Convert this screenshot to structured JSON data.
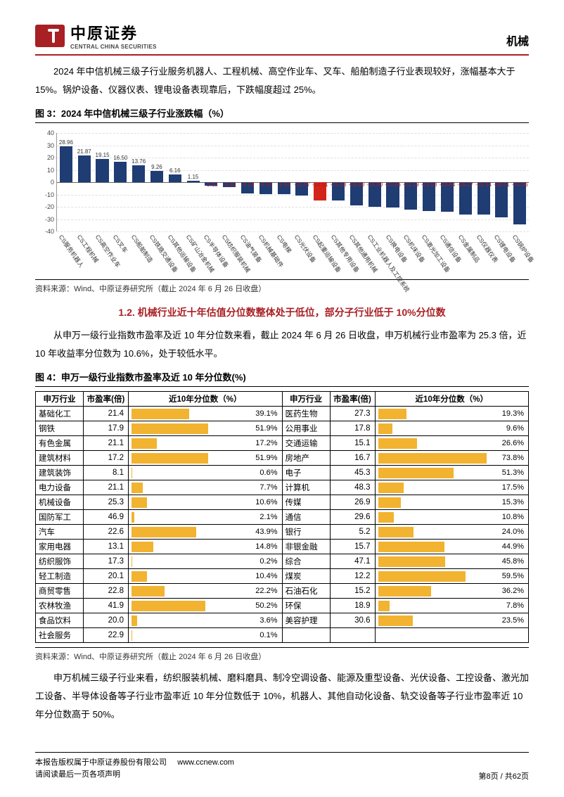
{
  "header": {
    "logo_cn": "中原证券",
    "logo_en": "CENTRAL CHINA SECURITIES",
    "category": "机械"
  },
  "para1": "2024 年中信机械三级子行业服务机器人、工程机械、高空作业车、叉车、船舶制造子行业表现较好，涨幅基本大于 15%。锅炉设备、仪器仪表、锂电设备表现靠后，下跌幅度超过 25%。",
  "fig3": {
    "title": "图 3：2024 年中信机械三级子行业涨跌幅（%）",
    "source": "资料来源：Wind、中原证券研究所（截止 2024 年 6 月 26 日收盘）",
    "ylim": [
      -40,
      40
    ],
    "yticks": [
      -40,
      -30,
      -20,
      -10,
      0,
      10,
      20,
      30,
      40
    ],
    "bar_color": "#1f3c73",
    "highlight_color": "#d32419",
    "highlight_index": 14,
    "grid_color": "#e0e0e0",
    "categories": [
      "CS服务机器人",
      "CS工程机械",
      "CS高空作业车",
      "CS叉车",
      "CS船舶制造",
      "CS铁路交通设备",
      "CS其他运输设备",
      "CS矿山冶金机械",
      "CS半导体设备",
      "CS纺织服装机械",
      "CS油气装备",
      "CS机械基础件",
      "CS电梯",
      "CS光伏设备",
      "CS起重运输设备",
      "CS其他专用设备",
      "CS其他通用机械",
      "CS工业机器人及工控系统",
      "CS换电设备",
      "CS机床设备",
      "CS激光加工设备",
      "CS通信设备",
      "CS金属制品",
      "CS仪器仪表",
      "CS锂电设备",
      "CS锅炉设备"
    ],
    "values": [
      28.96,
      21.87,
      19.15,
      16.5,
      13.76,
      9.26,
      6.16,
      1.15,
      -3.12,
      -3.92,
      -9.24,
      -9.53,
      -9.94,
      -10.87,
      -14.61,
      -15.03,
      -18.6,
      -19.8,
      -20.66,
      -22.19,
      -23.53,
      -23.84,
      -26.27,
      -26.34,
      -28.51,
      -34.06
    ]
  },
  "sectionHeading": "1.2. 机械行业近十年估值分位数整体处于低位，部分子行业低于 10%分位数",
  "para2": "从申万一级行业指数市盈率及近 10 年分位数来看，截止 2024 年 6 月 26 日收盘，申万机械行业市盈率为 25.3 倍，近 10 年收益率分位数为 10.6%，处于较低水平。",
  "fig4": {
    "title": "图 4：申万一级行业指数市盈率及近 10 年分位数(%)",
    "source": "资料来源：Wind、中原证券研究所（截止 2024 年 6 月 26 日收盘）",
    "headers": [
      "申万行业",
      "市盈率(倍)",
      "近10年分位数（%）",
      "申万行业",
      "市盈率(倍)",
      "近10年分位数（%）"
    ],
    "bar_color": "#f2b330",
    "rows": [
      {
        "l": {
          "name": "基础化工",
          "pe": 21.4,
          "pct": 39.1
        },
        "r": {
          "name": "医药生物",
          "pe": 27.3,
          "pct": 19.3
        }
      },
      {
        "l": {
          "name": "钢铁",
          "pe": 17.9,
          "pct": 51.9
        },
        "r": {
          "name": "公用事业",
          "pe": 17.8,
          "pct": 9.6
        }
      },
      {
        "l": {
          "name": "有色金属",
          "pe": 21.1,
          "pct": 17.2
        },
        "r": {
          "name": "交通运输",
          "pe": 15.1,
          "pct": 26.6
        }
      },
      {
        "l": {
          "name": "建筑材料",
          "pe": 17.2,
          "pct": 51.9
        },
        "r": {
          "name": "房地产",
          "pe": 16.7,
          "pct": 73.8
        }
      },
      {
        "l": {
          "name": "建筑装饰",
          "pe": 8.1,
          "pct": 0.6
        },
        "r": {
          "name": "电子",
          "pe": 45.3,
          "pct": 51.3
        }
      },
      {
        "l": {
          "name": "电力设备",
          "pe": 21.1,
          "pct": 7.7
        },
        "r": {
          "name": "计算机",
          "pe": 48.3,
          "pct": 17.5
        }
      },
      {
        "l": {
          "name": "机械设备",
          "pe": 25.3,
          "pct": 10.6
        },
        "r": {
          "name": "传媒",
          "pe": 26.9,
          "pct": 15.3
        }
      },
      {
        "l": {
          "name": "国防军工",
          "pe": 46.9,
          "pct": 2.1
        },
        "r": {
          "name": "通信",
          "pe": 29.6,
          "pct": 10.8
        }
      },
      {
        "l": {
          "name": "汽车",
          "pe": 22.6,
          "pct": 43.9
        },
        "r": {
          "name": "银行",
          "pe": 5.2,
          "pct": 24.0
        }
      },
      {
        "l": {
          "name": "家用电器",
          "pe": 13.1,
          "pct": 14.8
        },
        "r": {
          "name": "非银金融",
          "pe": 15.7,
          "pct": 44.9
        }
      },
      {
        "l": {
          "name": "纺织服饰",
          "pe": 17.3,
          "pct": 0.2
        },
        "r": {
          "name": "综合",
          "pe": 47.1,
          "pct": 45.8
        }
      },
      {
        "l": {
          "name": "轻工制造",
          "pe": 20.1,
          "pct": 10.4
        },
        "r": {
          "name": "煤炭",
          "pe": 12.2,
          "pct": 59.5
        }
      },
      {
        "l": {
          "name": "商贸零售",
          "pe": 22.8,
          "pct": 22.2
        },
        "r": {
          "name": "石油石化",
          "pe": 15.2,
          "pct": 36.2
        }
      },
      {
        "l": {
          "name": "农林牧渔",
          "pe": 41.9,
          "pct": 50.2
        },
        "r": {
          "name": "环保",
          "pe": 18.9,
          "pct": 7.8
        }
      },
      {
        "l": {
          "name": "食品饮料",
          "pe": 20.0,
          "pct": 3.6
        },
        "r": {
          "name": "美容护理",
          "pe": 30.6,
          "pct": 23.5
        }
      },
      {
        "l": {
          "name": "社会服务",
          "pe": 22.9,
          "pct": 0.1
        },
        "r": null
      }
    ]
  },
  "para3": "申万机械三级子行业来看，纺织服装机械、磨料磨具、制冷空调设备、能源及重型设备、光伏设备、工控设备、激光加工设备、半导体设备等子行业市盈率近 10 年分位数低于 10%，机器人、其他自动化设备、轨交设备等子行业市盈率近 10 年分位数高于 50%。",
  "footer": {
    "line1": "本报告版权属于中原证券股份有限公司",
    "url": "www.ccnew.com",
    "line2": "请阅读最后一页各项声明",
    "page": "第8页  /  共62页"
  }
}
